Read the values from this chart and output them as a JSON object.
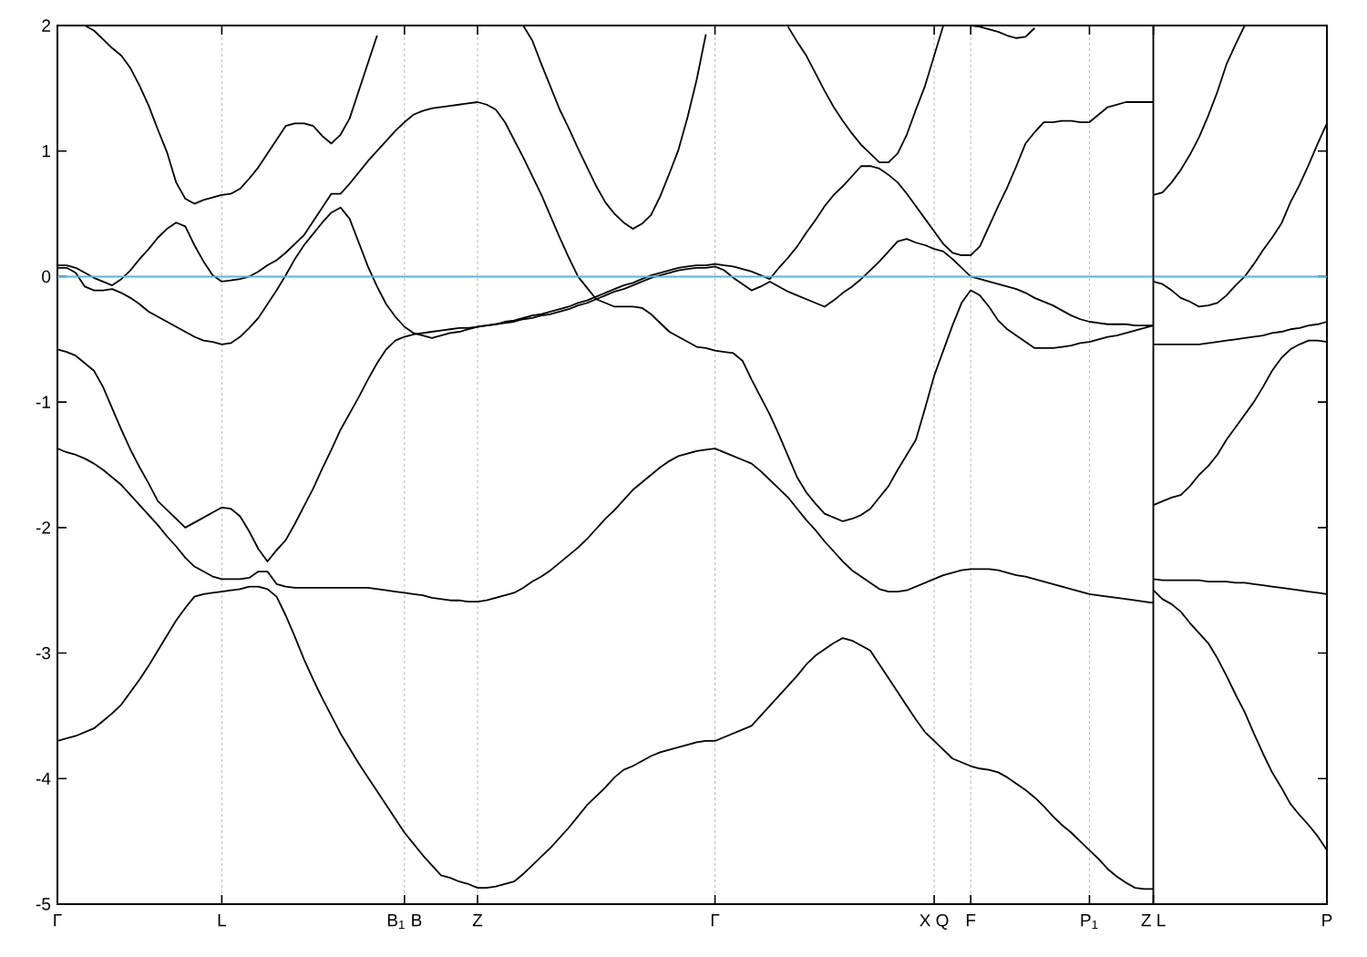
{
  "chart_data": {
    "type": "line",
    "categories": [
      "Γ",
      null,
      null,
      null,
      null,
      null,
      null,
      null,
      null,
      null,
      null,
      null,
      null,
      null,
      null,
      null,
      null,
      null,
      "L",
      null,
      null,
      null,
      null,
      null,
      null,
      null,
      null,
      null,
      null,
      null,
      null,
      null,
      null,
      null,
      null,
      null,
      null,
      null,
      "B$_{1}$ B",
      null,
      null,
      null,
      null,
      null,
      null,
      null,
      "Z",
      null,
      null,
      null,
      null,
      null,
      null,
      null,
      null,
      null,
      null,
      null,
      null,
      null,
      null,
      null,
      null,
      null,
      null,
      null,
      null,
      null,
      null,
      null,
      null,
      null,
      "Γ",
      null,
      null,
      null,
      null,
      null,
      null,
      null,
      null,
      null,
      null,
      null,
      null,
      null,
      null,
      null,
      null,
      null,
      null,
      null,
      null,
      null,
      null,
      null,
      "X Q",
      null,
      null,
      null,
      "F",
      null,
      null,
      null,
      null,
      null,
      null,
      null,
      null,
      null,
      null,
      null,
      null,
      "P$_{1}$",
      null,
      null,
      null,
      null,
      null,
      null,
      "Z L",
      null,
      null,
      null,
      null,
      null,
      null,
      null,
      null,
      null,
      null,
      null,
      null,
      null,
      null,
      null,
      null,
      null,
      null,
      "P"
    ],
    "ylim": [
      -5,
      2
    ],
    "yticks": [
      -5,
      -4,
      -3,
      -2,
      -1,
      0,
      1,
      2
    ],
    "grid": "x",
    "ref_lines": [
      {
        "axis": "y",
        "value": 0,
        "color": "#56b4e9"
      },
      {
        "axis": "x",
        "value": "Z L",
        "color": "#000000"
      }
    ],
    "series": [
      {
        "color": "#000000",
        "values": [
          -3.7,
          -3.68,
          -3.66,
          -3.63,
          -3.6,
          -3.54,
          -3.48,
          -3.41,
          -3.31,
          -3.21,
          -3.1,
          -2.98,
          -2.86,
          -2.74,
          -2.64,
          -2.55,
          -2.53,
          -2.52,
          -2.51,
          -2.5,
          -2.49,
          -2.47,
          -2.47,
          -2.49,
          -2.55,
          -2.7,
          -2.87,
          -3.05,
          -3.21,
          -3.36,
          -3.5,
          -3.64,
          -3.76,
          -3.88,
          -3.99,
          -4.1,
          -4.21,
          -4.32,
          -4.43,
          -4.52,
          -4.61,
          -4.69,
          -4.77,
          -4.79,
          -4.82,
          -4.84,
          -4.87,
          -4.87,
          -4.86,
          -4.84,
          -4.82,
          -4.76,
          -4.69,
          -4.62,
          -4.55,
          -4.47,
          -4.39,
          -4.3,
          -4.21,
          -4.14,
          -4.07,
          -3.99,
          -3.93,
          -3.9,
          -3.86,
          -3.82,
          -3.79,
          -3.77,
          -3.75,
          -3.73,
          -3.71,
          -3.7,
          -3.7,
          -3.67,
          -3.64,
          -3.61,
          -3.58,
          -3.5,
          -3.42,
          -3.34,
          -3.26,
          -3.18,
          -3.09,
          -3.02,
          -2.97,
          -2.92,
          -2.88,
          -2.9,
          -2.94,
          -2.98,
          -3.09,
          -3.2,
          -3.31,
          -3.42,
          -3.53,
          -3.63,
          -3.7,
          -3.77,
          -3.84,
          -3.87,
          -3.9,
          -3.92,
          -3.93,
          -3.95,
          -3.99,
          -4.04,
          -4.09,
          -4.15,
          -4.22,
          -4.3,
          -4.37,
          -4.43,
          -4.5,
          -4.57,
          -4.64,
          -4.72,
          -4.78,
          -4.83,
          -4.87,
          -4.88,
          -4.88,
          null,
          null,
          null,
          null,
          null,
          null,
          null,
          null,
          null,
          null,
          null,
          null,
          null,
          null,
          null,
          null,
          null,
          null,
          null
        ]
      },
      {
        "color": "#000000",
        "values": [
          -1.37,
          -1.4,
          -1.42,
          -1.45,
          -1.49,
          -1.54,
          -1.6,
          -1.66,
          -1.74,
          -1.82,
          -1.9,
          -1.98,
          -2.07,
          -2.15,
          -2.24,
          -2.31,
          -2.35,
          -2.39,
          -2.41,
          -2.41,
          -2.41,
          -2.4,
          -2.35,
          -2.35,
          -2.45,
          -2.47,
          -2.48,
          -2.48,
          -2.48,
          -2.48,
          -2.48,
          -2.48,
          -2.48,
          -2.48,
          -2.48,
          -2.49,
          -2.5,
          -2.51,
          -2.52,
          -2.53,
          -2.54,
          -2.56,
          -2.57,
          -2.58,
          -2.58,
          -2.59,
          -2.59,
          -2.58,
          -2.56,
          -2.54,
          -2.52,
          -2.48,
          -2.43,
          -2.39,
          -2.34,
          -2.28,
          -2.22,
          -2.16,
          -2.09,
          -2.01,
          -1.93,
          -1.86,
          -1.78,
          -1.7,
          -1.64,
          -1.58,
          -1.52,
          -1.47,
          -1.43,
          -1.41,
          -1.39,
          -1.38,
          -1.37,
          -1.4,
          -1.43,
          -1.46,
          -1.49,
          -1.55,
          -1.62,
          -1.69,
          -1.76,
          -1.85,
          -1.94,
          -2.02,
          -2.11,
          -2.19,
          -2.27,
          -2.34,
          -2.39,
          -2.44,
          -2.49,
          -2.51,
          -2.51,
          -2.5,
          -2.47,
          -2.44,
          -2.41,
          -2.38,
          -2.36,
          -2.34,
          -2.33,
          -2.33,
          -2.33,
          -2.34,
          -2.36,
          -2.38,
          -2.39,
          -2.41,
          -2.43,
          -2.45,
          -2.47,
          -2.49,
          -2.51,
          -2.53,
          -2.54,
          -2.55,
          -2.56,
          -2.57,
          -2.58,
          -2.59,
          -2.6,
          null,
          null,
          null,
          null,
          null,
          null,
          null,
          null,
          null,
          null,
          null,
          null,
          null,
          null,
          null,
          null,
          null,
          null,
          null
        ]
      },
      {
        "color": "#000000",
        "values": [
          -0.58,
          -0.6,
          -0.63,
          -0.69,
          -0.75,
          -0.88,
          -1.05,
          -1.22,
          -1.38,
          -1.52,
          -1.65,
          -1.79,
          -1.86,
          -1.93,
          -2.0,
          -1.96,
          -1.92,
          -1.88,
          -1.84,
          -1.85,
          -1.91,
          -2.03,
          -2.17,
          -2.27,
          -2.18,
          -2.1,
          -1.97,
          -1.83,
          -1.69,
          -1.53,
          -1.38,
          -1.22,
          -1.09,
          -0.96,
          -0.82,
          -0.69,
          -0.58,
          -0.51,
          -0.48,
          -0.46,
          -0.45,
          -0.44,
          -0.43,
          -0.42,
          -0.41,
          -0.41,
          -0.4,
          -0.39,
          -0.38,
          -0.37,
          -0.36,
          -0.34,
          -0.33,
          -0.31,
          -0.3,
          -0.28,
          -0.26,
          -0.23,
          -0.21,
          -0.18,
          -0.15,
          -0.12,
          -0.1,
          -0.07,
          -0.04,
          -0.01,
          0.01,
          0.03,
          0.05,
          0.06,
          0.07,
          0.07,
          0.08,
          0.05,
          -0.01,
          -0.06,
          -0.11,
          -0.08,
          -0.04,
          -0.08,
          -0.12,
          -0.15,
          -0.18,
          -0.21,
          -0.24,
          -0.19,
          -0.13,
          -0.08,
          -0.02,
          0.05,
          0.12,
          0.2,
          0.28,
          0.3,
          0.27,
          0.25,
          0.22,
          0.2,
          0.14,
          0.07,
          0.0,
          -0.02,
          -0.04,
          -0.06,
          -0.08,
          -0.1,
          -0.13,
          -0.17,
          -0.2,
          -0.23,
          -0.27,
          -0.31,
          -0.34,
          -0.36,
          -0.37,
          -0.38,
          -0.38,
          -0.38,
          -0.39,
          -0.39,
          -0.39,
          null,
          null,
          null,
          null,
          null,
          null,
          null,
          null,
          null,
          null,
          null,
          null,
          null,
          null,
          null,
          null,
          null,
          null,
          null
        ]
      },
      {
        "color": "#000000",
        "values": [
          0.09,
          0.09,
          0.07,
          0.03,
          -0.01,
          -0.04,
          -0.07,
          -0.02,
          0.05,
          0.14,
          0.22,
          0.31,
          0.38,
          0.43,
          0.4,
          0.25,
          0.12,
          0.01,
          -0.04,
          -0.03,
          -0.02,
          0.0,
          0.04,
          0.09,
          0.13,
          0.19,
          0.26,
          0.33,
          0.44,
          0.55,
          0.66,
          0.66,
          0.74,
          0.83,
          0.92,
          1.0,
          1.08,
          1.16,
          1.23,
          1.29,
          1.32,
          1.34,
          1.35,
          1.36,
          1.37,
          1.38,
          1.39,
          1.37,
          1.33,
          1.23,
          1.09,
          0.95,
          0.8,
          0.65,
          0.48,
          0.31,
          0.15,
          0.0,
          -0.09,
          -0.18,
          -0.21,
          -0.24,
          -0.24,
          -0.24,
          -0.25,
          -0.3,
          -0.37,
          -0.44,
          -0.48,
          -0.52,
          -0.56,
          -0.57,
          -0.59,
          -0.6,
          -0.61,
          -0.67,
          -0.82,
          -0.96,
          -1.1,
          -1.26,
          -1.43,
          -1.6,
          -1.72,
          -1.81,
          -1.89,
          -1.92,
          -1.95,
          -1.93,
          -1.9,
          -1.85,
          -1.76,
          -1.67,
          -1.54,
          -1.42,
          -1.3,
          -1.05,
          -0.79,
          -0.59,
          -0.39,
          -0.21,
          -0.11,
          -0.15,
          -0.24,
          -0.35,
          -0.42,
          -0.47,
          -0.52,
          -0.57,
          -0.57,
          -0.57,
          -0.56,
          -0.55,
          -0.53,
          -0.52,
          -0.5,
          -0.48,
          -0.47,
          -0.45,
          -0.43,
          -0.41,
          -0.39,
          null,
          null,
          null,
          null,
          null,
          null,
          null,
          null,
          null,
          null,
          null,
          null,
          null,
          null,
          null,
          null,
          null,
          null,
          null
        ]
      },
      {
        "color": "#000000",
        "values": [
          0.07,
          0.07,
          0.03,
          -0.08,
          -0.11,
          -0.11,
          -0.1,
          -0.13,
          -0.17,
          -0.22,
          -0.28,
          -0.32,
          -0.36,
          -0.4,
          -0.44,
          -0.48,
          -0.51,
          -0.52,
          -0.54,
          -0.53,
          -0.48,
          -0.41,
          -0.33,
          -0.22,
          -0.11,
          0.01,
          0.14,
          0.25,
          0.34,
          0.43,
          0.51,
          0.55,
          0.46,
          0.27,
          0.08,
          -0.08,
          -0.22,
          -0.32,
          -0.4,
          -0.45,
          -0.47,
          -0.49,
          -0.47,
          -0.45,
          -0.44,
          -0.42,
          -0.4,
          -0.39,
          -0.38,
          -0.36,
          -0.35,
          -0.33,
          -0.31,
          -0.3,
          -0.28,
          -0.26,
          -0.24,
          -0.21,
          -0.19,
          -0.16,
          -0.13,
          -0.1,
          -0.07,
          -0.05,
          -0.02,
          0.01,
          0.03,
          0.05,
          0.07,
          0.08,
          0.09,
          0.09,
          0.1,
          0.09,
          0.08,
          0.06,
          0.04,
          0.01,
          -0.02,
          0.07,
          0.15,
          0.24,
          0.35,
          0.45,
          0.56,
          0.65,
          0.72,
          0.8,
          0.88,
          0.88,
          0.86,
          0.81,
          0.75,
          0.66,
          0.56,
          0.46,
          0.36,
          0.26,
          0.19,
          0.17,
          0.17,
          0.24,
          0.4,
          0.56,
          0.71,
          0.88,
          1.06,
          1.15,
          1.23,
          1.23,
          1.24,
          1.24,
          1.23,
          1.23,
          1.29,
          1.35,
          1.37,
          1.39,
          1.39,
          1.39,
          1.39,
          null,
          null,
          null,
          null,
          null,
          null,
          null,
          null,
          null,
          null,
          null,
          null,
          null,
          null,
          null,
          null,
          null,
          null,
          null
        ]
      },
      {
        "color": "#000000",
        "values": [
          null,
          null,
          null,
          2.0,
          1.96,
          1.89,
          1.82,
          1.76,
          1.66,
          1.52,
          1.36,
          1.17,
          0.99,
          0.75,
          0.62,
          0.58,
          0.61,
          0.63,
          0.65,
          0.66,
          0.7,
          0.78,
          0.87,
          0.98,
          1.09,
          1.2,
          1.22,
          1.22,
          1.2,
          1.12,
          1.06,
          1.13,
          1.26,
          1.48,
          1.7,
          1.92,
          null,
          null,
          null,
          null,
          null,
          null,
          null,
          null,
          null,
          null,
          null,
          null,
          null,
          null,
          null,
          null,
          null,
          null,
          null,
          null,
          null,
          null,
          null,
          null,
          null,
          null,
          null,
          null,
          null,
          null,
          null,
          null,
          null,
          null,
          null,
          null,
          null,
          null,
          null,
          null,
          null,
          null,
          null,
          null,
          null,
          null,
          null,
          null,
          null,
          null,
          null,
          null,
          null,
          null,
          null,
          null,
          null,
          null,
          null,
          null,
          null,
          null,
          null,
          null,
          null,
          null,
          null,
          null,
          null,
          null,
          null,
          null,
          null,
          null,
          null,
          null,
          null,
          null,
          null,
          null,
          null,
          null,
          null,
          null,
          null,
          null,
          null,
          null,
          null,
          null,
          null,
          null,
          null,
          null,
          null,
          null,
          null,
          null,
          null,
          null,
          null,
          null,
          null,
          null
        ]
      },
      {
        "color": "#000000",
        "values": [
          null,
          null,
          null,
          null,
          null,
          null,
          null,
          null,
          null,
          null,
          null,
          null,
          null,
          null,
          null,
          null,
          null,
          null,
          null,
          null,
          null,
          null,
          null,
          null,
          null,
          null,
          null,
          null,
          null,
          null,
          null,
          null,
          null,
          null,
          null,
          null,
          null,
          null,
          null,
          null,
          null,
          null,
          null,
          null,
          null,
          null,
          null,
          null,
          null,
          null,
          null,
          2.0,
          1.88,
          1.69,
          1.51,
          1.33,
          1.18,
          1.02,
          0.87,
          0.72,
          0.59,
          0.5,
          0.43,
          0.38,
          0.42,
          0.49,
          0.64,
          0.82,
          1.01,
          1.27,
          1.57,
          1.93,
          null,
          null,
          null,
          null,
          null,
          null,
          null,
          null,
          null,
          null,
          null,
          null,
          null,
          null,
          null,
          null,
          null,
          null,
          null,
          null,
          null,
          null,
          null,
          null,
          null,
          null,
          null,
          null,
          null,
          null,
          null,
          null,
          null,
          null,
          null,
          null,
          null,
          null,
          null,
          null,
          null,
          null,
          null,
          null,
          null,
          null,
          null,
          null,
          null,
          null,
          null,
          null,
          null,
          null,
          null,
          null,
          null,
          null,
          null,
          null,
          null,
          null,
          null,
          null,
          null,
          null,
          null,
          null
        ]
      },
      {
        "color": "#000000",
        "values": [
          null,
          null,
          null,
          null,
          null,
          null,
          null,
          null,
          null,
          null,
          null,
          null,
          null,
          null,
          null,
          null,
          null,
          null,
          null,
          null,
          null,
          null,
          null,
          null,
          null,
          null,
          null,
          null,
          null,
          null,
          null,
          null,
          null,
          null,
          null,
          null,
          null,
          null,
          null,
          null,
          null,
          null,
          null,
          null,
          null,
          null,
          null,
          null,
          null,
          null,
          null,
          null,
          null,
          null,
          null,
          null,
          null,
          null,
          null,
          null,
          null,
          null,
          null,
          null,
          null,
          null,
          null,
          null,
          null,
          null,
          null,
          null,
          null,
          null,
          null,
          null,
          null,
          null,
          null,
          null,
          1.99,
          1.87,
          1.76,
          1.62,
          1.48,
          1.35,
          1.24,
          1.14,
          1.05,
          0.98,
          0.91,
          0.91,
          0.98,
          1.13,
          1.33,
          1.52,
          1.76,
          2.0,
          null,
          null,
          null,
          null,
          null,
          null,
          null,
          null,
          null,
          null,
          null,
          null,
          null,
          null,
          null,
          null,
          null,
          null,
          null,
          null,
          null,
          null,
          null,
          null,
          null,
          null,
          null,
          null,
          null,
          null,
          null,
          null,
          null,
          null,
          null,
          null,
          null,
          null,
          null,
          null,
          null,
          null
        ]
      },
      {
        "color": "#000000",
        "values": [
          null,
          null,
          null,
          null,
          null,
          null,
          null,
          null,
          null,
          null,
          null,
          null,
          null,
          null,
          null,
          null,
          null,
          null,
          null,
          null,
          null,
          null,
          null,
          null,
          null,
          null,
          null,
          null,
          null,
          null,
          null,
          null,
          null,
          null,
          null,
          null,
          null,
          null,
          null,
          null,
          null,
          null,
          null,
          null,
          null,
          null,
          null,
          null,
          null,
          null,
          null,
          null,
          null,
          null,
          null,
          null,
          null,
          null,
          null,
          null,
          null,
          null,
          null,
          null,
          null,
          null,
          null,
          null,
          null,
          null,
          null,
          null,
          null,
          null,
          null,
          null,
          null,
          null,
          null,
          null,
          null,
          null,
          null,
          null,
          null,
          null,
          null,
          null,
          null,
          null,
          null,
          null,
          null,
          null,
          null,
          null,
          null,
          null,
          null,
          null,
          2.0,
          1.99,
          1.97,
          1.95,
          1.92,
          1.9,
          1.91,
          1.98,
          null,
          null,
          null,
          null,
          null,
          null,
          null,
          null,
          null,
          null,
          null,
          null,
          null,
          null,
          null,
          null,
          null,
          null,
          null,
          null,
          null,
          null,
          null,
          null,
          null,
          null,
          null,
          null,
          null,
          null,
          null,
          null
        ]
      },
      {
        "color": "#000000",
        "values": [
          null,
          null,
          null,
          null,
          null,
          null,
          null,
          null,
          null,
          null,
          null,
          null,
          null,
          null,
          null,
          null,
          null,
          null,
          null,
          null,
          null,
          null,
          null,
          null,
          null,
          null,
          null,
          null,
          null,
          null,
          null,
          null,
          null,
          null,
          null,
          null,
          null,
          null,
          null,
          null,
          null,
          null,
          null,
          null,
          null,
          null,
          null,
          null,
          null,
          null,
          null,
          null,
          null,
          null,
          null,
          null,
          null,
          null,
          null,
          null,
          null,
          null,
          null,
          null,
          null,
          null,
          null,
          null,
          null,
          null,
          null,
          null,
          null,
          null,
          null,
          null,
          null,
          null,
          null,
          null,
          null,
          null,
          null,
          null,
          null,
          null,
          null,
          null,
          null,
          null,
          null,
          null,
          null,
          null,
          null,
          null,
          null,
          null,
          null,
          null,
          null,
          null,
          null,
          null,
          null,
          null,
          null,
          null,
          null,
          null,
          null,
          null,
          null,
          null,
          null,
          null,
          null,
          null,
          null,
          null,
          -2.5,
          -2.57,
          -2.61,
          -2.67,
          -2.76,
          -2.84,
          -2.92,
          -3.04,
          -3.18,
          -3.33,
          -3.47,
          -3.64,
          -3.8,
          -3.95,
          -4.07,
          -4.2,
          -4.29,
          -4.37,
          -4.46,
          -4.57
        ]
      },
      {
        "color": "#000000",
        "values": [
          null,
          null,
          null,
          null,
          null,
          null,
          null,
          null,
          null,
          null,
          null,
          null,
          null,
          null,
          null,
          null,
          null,
          null,
          null,
          null,
          null,
          null,
          null,
          null,
          null,
          null,
          null,
          null,
          null,
          null,
          null,
          null,
          null,
          null,
          null,
          null,
          null,
          null,
          null,
          null,
          null,
          null,
          null,
          null,
          null,
          null,
          null,
          null,
          null,
          null,
          null,
          null,
          null,
          null,
          null,
          null,
          null,
          null,
          null,
          null,
          null,
          null,
          null,
          null,
          null,
          null,
          null,
          null,
          null,
          null,
          null,
          null,
          null,
          null,
          null,
          null,
          null,
          null,
          null,
          null,
          null,
          null,
          null,
          null,
          null,
          null,
          null,
          null,
          null,
          null,
          null,
          null,
          null,
          null,
          null,
          null,
          null,
          null,
          null,
          null,
          null,
          null,
          null,
          null,
          null,
          null,
          null,
          null,
          null,
          null,
          null,
          null,
          null,
          null,
          null,
          null,
          null,
          null,
          null,
          null,
          -2.41,
          -2.42,
          -2.42,
          -2.42,
          -2.42,
          -2.42,
          -2.43,
          -2.43,
          -2.43,
          -2.44,
          -2.44,
          -2.45,
          -2.46,
          -2.47,
          -2.48,
          -2.49,
          -2.5,
          -2.51,
          -2.52,
          -2.53
        ]
      },
      {
        "color": "#000000",
        "values": [
          null,
          null,
          null,
          null,
          null,
          null,
          null,
          null,
          null,
          null,
          null,
          null,
          null,
          null,
          null,
          null,
          null,
          null,
          null,
          null,
          null,
          null,
          null,
          null,
          null,
          null,
          null,
          null,
          null,
          null,
          null,
          null,
          null,
          null,
          null,
          null,
          null,
          null,
          null,
          null,
          null,
          null,
          null,
          null,
          null,
          null,
          null,
          null,
          null,
          null,
          null,
          null,
          null,
          null,
          null,
          null,
          null,
          null,
          null,
          null,
          null,
          null,
          null,
          null,
          null,
          null,
          null,
          null,
          null,
          null,
          null,
          null,
          null,
          null,
          null,
          null,
          null,
          null,
          null,
          null,
          null,
          null,
          null,
          null,
          null,
          null,
          null,
          null,
          null,
          null,
          null,
          null,
          null,
          null,
          null,
          null,
          null,
          null,
          null,
          null,
          null,
          null,
          null,
          null,
          null,
          null,
          null,
          null,
          null,
          null,
          null,
          null,
          null,
          null,
          null,
          null,
          null,
          null,
          null,
          null,
          -1.82,
          -1.79,
          -1.76,
          -1.74,
          -1.67,
          -1.58,
          -1.51,
          -1.42,
          -1.3,
          -1.2,
          -1.1,
          -1.0,
          -0.88,
          -0.75,
          -0.65,
          -0.58,
          -0.54,
          -0.51,
          -0.51,
          -0.52
        ]
      },
      {
        "color": "#000000",
        "values": [
          null,
          null,
          null,
          null,
          null,
          null,
          null,
          null,
          null,
          null,
          null,
          null,
          null,
          null,
          null,
          null,
          null,
          null,
          null,
          null,
          null,
          null,
          null,
          null,
          null,
          null,
          null,
          null,
          null,
          null,
          null,
          null,
          null,
          null,
          null,
          null,
          null,
          null,
          null,
          null,
          null,
          null,
          null,
          null,
          null,
          null,
          null,
          null,
          null,
          null,
          null,
          null,
          null,
          null,
          null,
          null,
          null,
          null,
          null,
          null,
          null,
          null,
          null,
          null,
          null,
          null,
          null,
          null,
          null,
          null,
          null,
          null,
          null,
          null,
          null,
          null,
          null,
          null,
          null,
          null,
          null,
          null,
          null,
          null,
          null,
          null,
          null,
          null,
          null,
          null,
          null,
          null,
          null,
          null,
          null,
          null,
          null,
          null,
          null,
          null,
          null,
          null,
          null,
          null,
          null,
          null,
          null,
          null,
          null,
          null,
          null,
          null,
          null,
          null,
          null,
          null,
          null,
          null,
          null,
          null,
          -0.54,
          -0.54,
          -0.54,
          -0.54,
          -0.54,
          -0.54,
          -0.53,
          -0.52,
          -0.51,
          -0.5,
          -0.49,
          -0.48,
          -0.47,
          -0.45,
          -0.44,
          -0.42,
          -0.41,
          -0.39,
          -0.38,
          -0.36
        ]
      },
      {
        "color": "#000000",
        "values": [
          null,
          null,
          null,
          null,
          null,
          null,
          null,
          null,
          null,
          null,
          null,
          null,
          null,
          null,
          null,
          null,
          null,
          null,
          null,
          null,
          null,
          null,
          null,
          null,
          null,
          null,
          null,
          null,
          null,
          null,
          null,
          null,
          null,
          null,
          null,
          null,
          null,
          null,
          null,
          null,
          null,
          null,
          null,
          null,
          null,
          null,
          null,
          null,
          null,
          null,
          null,
          null,
          null,
          null,
          null,
          null,
          null,
          null,
          null,
          null,
          null,
          null,
          null,
          null,
          null,
          null,
          null,
          null,
          null,
          null,
          null,
          null,
          null,
          null,
          null,
          null,
          null,
          null,
          null,
          null,
          null,
          null,
          null,
          null,
          null,
          null,
          null,
          null,
          null,
          null,
          null,
          null,
          null,
          null,
          null,
          null,
          null,
          null,
          null,
          null,
          null,
          null,
          null,
          null,
          null,
          null,
          null,
          null,
          null,
          null,
          null,
          null,
          null,
          null,
          null,
          null,
          null,
          null,
          null,
          null,
          -0.04,
          -0.06,
          -0.11,
          -0.17,
          -0.2,
          -0.24,
          -0.23,
          -0.21,
          -0.15,
          -0.07,
          0.0,
          0.1,
          0.21,
          0.31,
          0.42,
          0.59,
          0.73,
          0.89,
          1.06,
          1.22
        ]
      },
      {
        "color": "#000000",
        "values": [
          null,
          null,
          null,
          null,
          null,
          null,
          null,
          null,
          null,
          null,
          null,
          null,
          null,
          null,
          null,
          null,
          null,
          null,
          null,
          null,
          null,
          null,
          null,
          null,
          null,
          null,
          null,
          null,
          null,
          null,
          null,
          null,
          null,
          null,
          null,
          null,
          null,
          null,
          null,
          null,
          null,
          null,
          null,
          null,
          null,
          null,
          null,
          null,
          null,
          null,
          null,
          null,
          null,
          null,
          null,
          null,
          null,
          null,
          null,
          null,
          null,
          null,
          null,
          null,
          null,
          null,
          null,
          null,
          null,
          null,
          null,
          null,
          null,
          null,
          null,
          null,
          null,
          null,
          null,
          null,
          null,
          null,
          null,
          null,
          null,
          null,
          null,
          null,
          null,
          null,
          null,
          null,
          null,
          null,
          null,
          null,
          null,
          null,
          null,
          null,
          null,
          null,
          null,
          null,
          null,
          null,
          null,
          null,
          null,
          null,
          null,
          null,
          null,
          null,
          null,
          null,
          null,
          null,
          null,
          null,
          0.65,
          0.67,
          0.75,
          0.85,
          0.97,
          1.11,
          1.28,
          1.47,
          1.69,
          1.85,
          2.0,
          null,
          null,
          null,
          null,
          null,
          null,
          null,
          null,
          null
        ]
      }
    ]
  }
}
